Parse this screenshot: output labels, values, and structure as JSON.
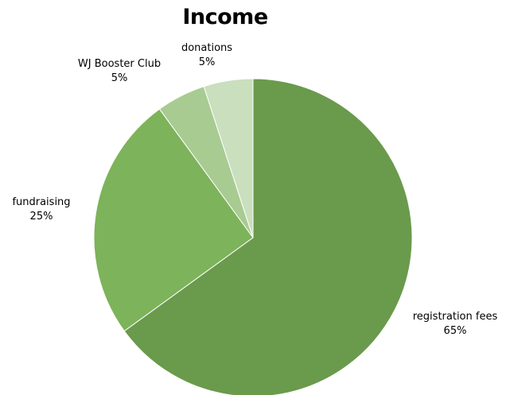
{
  "chart_data": {
    "type": "pie",
    "title": "Income",
    "categories": [
      "registration fees",
      "fundraising",
      "WJ Booster Club",
      "donations"
    ],
    "values": [
      65,
      25,
      5,
      5
    ],
    "value_labels": [
      "65%",
      "25%",
      "5%",
      "5%"
    ],
    "colors": [
      "#6a9a4c",
      "#7db35a",
      "#a8cb92",
      "#c9dfbd"
    ],
    "start_angle": "top, clockwise"
  }
}
